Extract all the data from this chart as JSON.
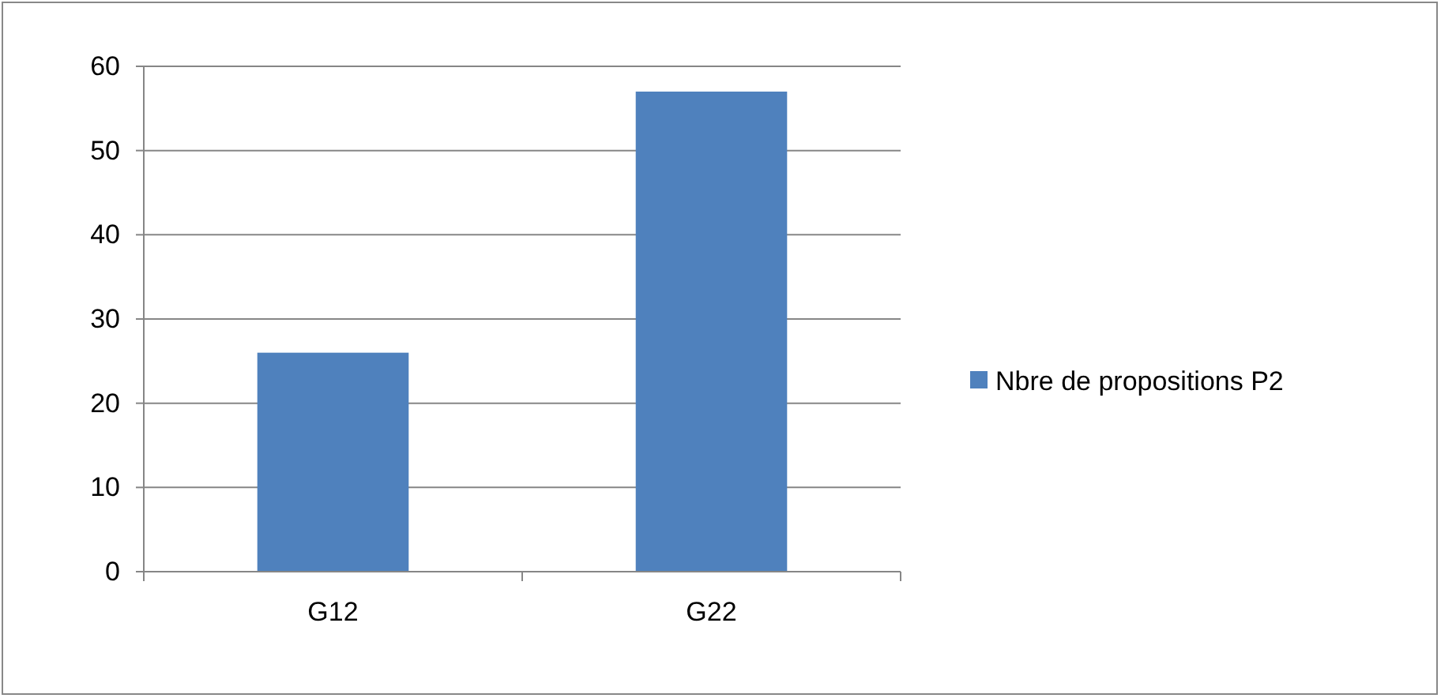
{
  "chart_data": {
    "type": "bar",
    "categories": [
      "G12",
      "G22"
    ],
    "series": [
      {
        "name": "Nbre de propositions P2",
        "color": "#4f81bd",
        "values": [
          26,
          57
        ]
      }
    ],
    "ylim": [
      0,
      60
    ],
    "yticks": [
      0,
      10,
      20,
      30,
      40,
      50,
      60
    ],
    "grid": "y",
    "legend": "right"
  }
}
